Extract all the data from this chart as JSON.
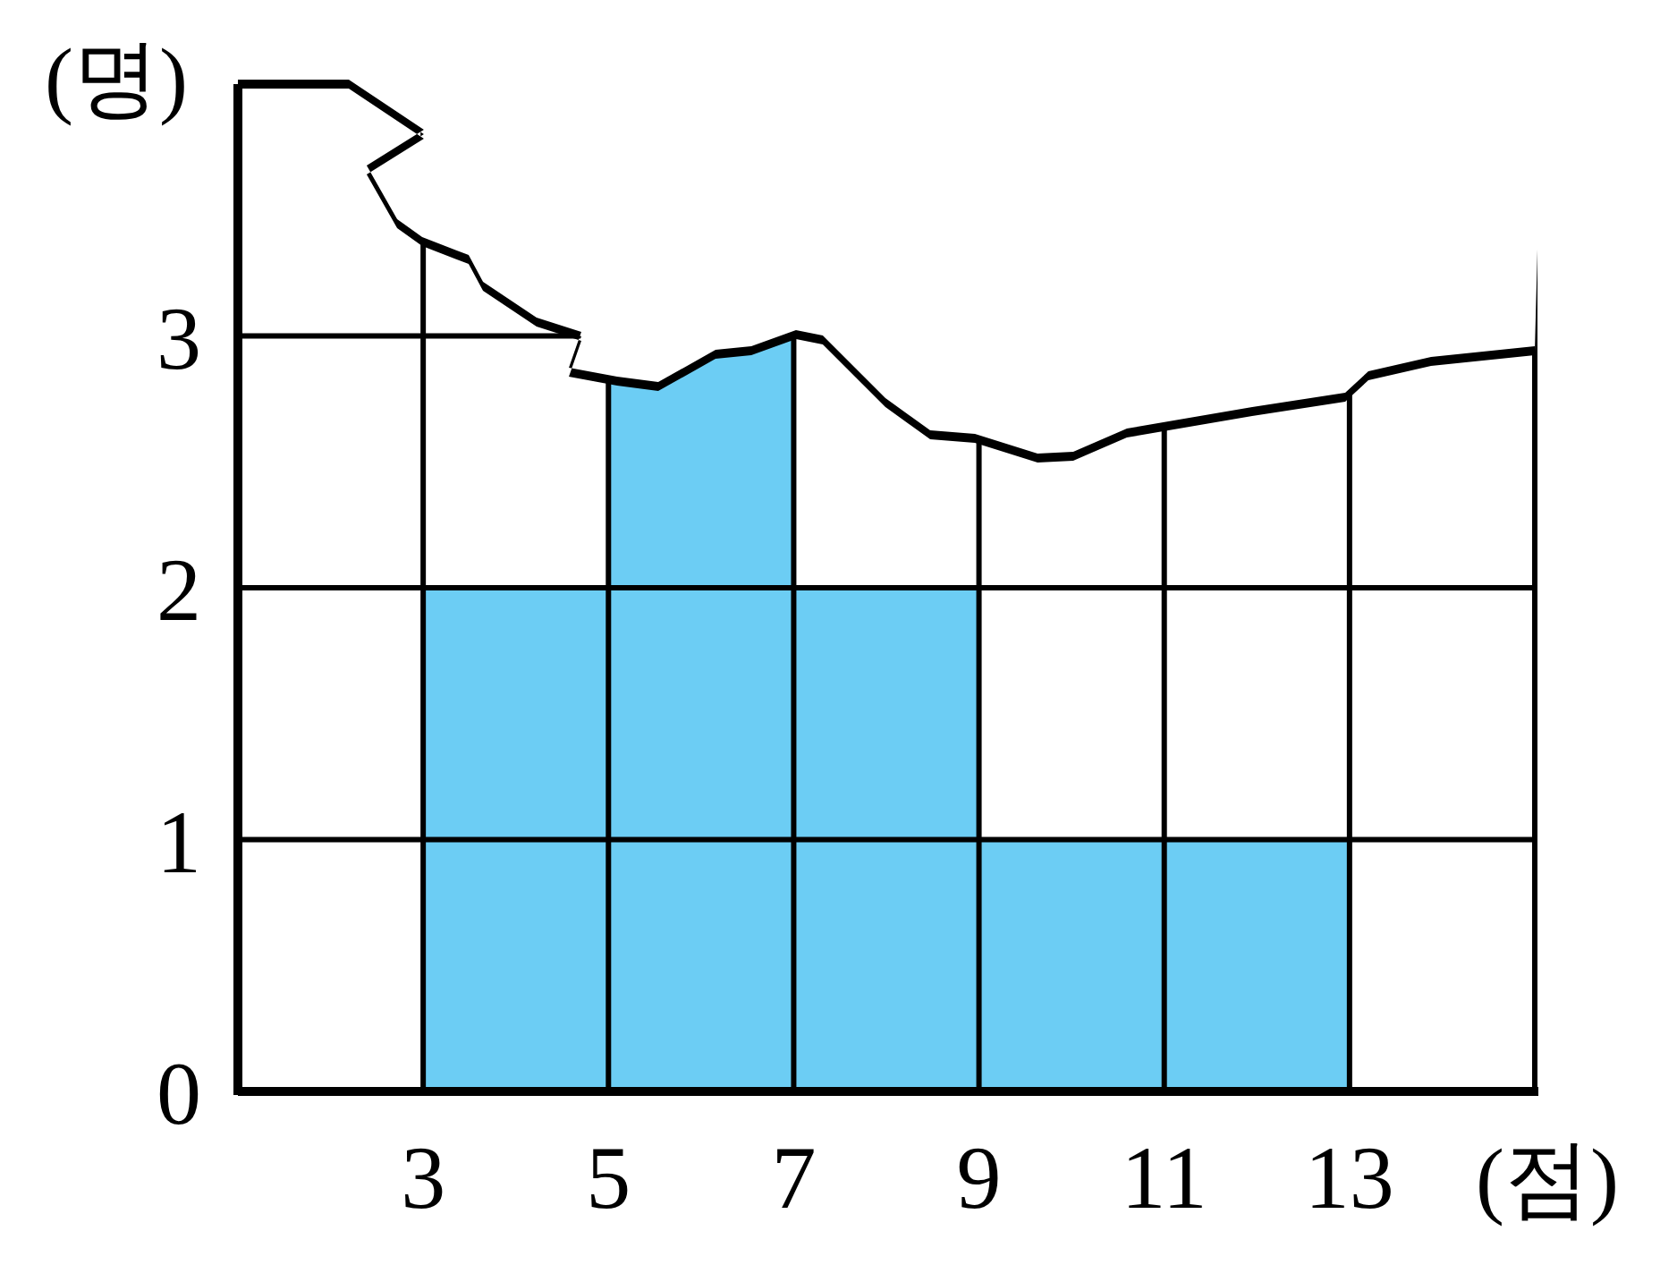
{
  "chart_data": {
    "type": "histogram",
    "xlabel": "(점)",
    "ylabel": "(명)",
    "bins": [
      3,
      5,
      7,
      9,
      11,
      13
    ],
    "values": [
      2,
      3,
      2,
      1,
      1
    ],
    "color": "#6ccdf4",
    "xlim": [
      1,
      15
    ],
    "ylim": [
      0,
      4
    ],
    "xticks": [
      3,
      5,
      7,
      9,
      11,
      13
    ],
    "yticks": [
      0,
      1,
      2,
      3
    ],
    "grid": true
  }
}
